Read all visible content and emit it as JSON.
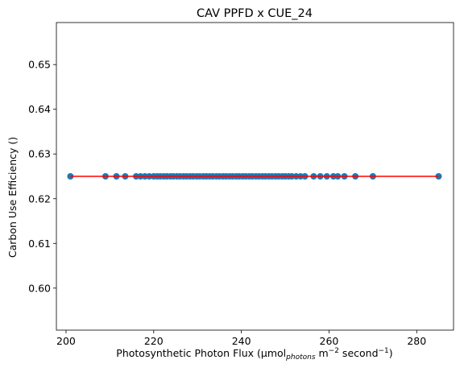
{
  "chart_data": {
    "type": "scatter",
    "title": "CAV PPFD x CUE_24",
    "xlabel": {
      "pre": "Photosynthetic Photon Flux (µmol",
      "sub": "photons",
      "mid1": " m",
      "sup1": "−2",
      "mid2": " second",
      "sup2": "−1",
      "post": ")"
    },
    "ylabel": "Carbon Use Efficiency ()",
    "xlim": [
      197.8,
      288.4
    ],
    "ylim": [
      0.5906,
      0.6594
    ],
    "xticks": [
      200,
      220,
      240,
      260,
      280
    ],
    "yticks": [
      0.6,
      0.61,
      0.62,
      0.63,
      0.64,
      0.65
    ],
    "ytick_labels": [
      "0.60",
      "0.61",
      "0.62",
      "0.63",
      "0.64",
      "0.65"
    ],
    "point_color": "#1f77b4",
    "line_color": "#ff0000",
    "x": [
      201.0,
      209.0,
      211.5,
      213.5,
      216.0,
      217.0,
      218.0,
      219.0,
      220.0,
      220.8,
      221.5,
      222.3,
      223.0,
      223.8,
      224.5,
      225.3,
      226.0,
      226.8,
      227.5,
      228.3,
      229.0,
      229.8,
      230.5,
      231.3,
      232.0,
      232.8,
      233.5,
      234.3,
      235.0,
      235.8,
      236.5,
      237.3,
      238.0,
      238.8,
      239.5,
      240.3,
      241.0,
      241.8,
      242.5,
      243.3,
      244.0,
      244.8,
      245.5,
      246.3,
      247.0,
      247.8,
      248.5,
      249.3,
      250.0,
      250.8,
      251.5,
      252.5,
      253.5,
      254.5,
      256.5,
      258.0,
      259.5,
      261.0,
      262.0,
      263.5,
      266.0,
      270.0,
      285.0
    ],
    "y_value": 0.625,
    "fit_line": {
      "x": [
        201.0,
        285.0
      ],
      "y": [
        0.625,
        0.625
      ]
    }
  }
}
